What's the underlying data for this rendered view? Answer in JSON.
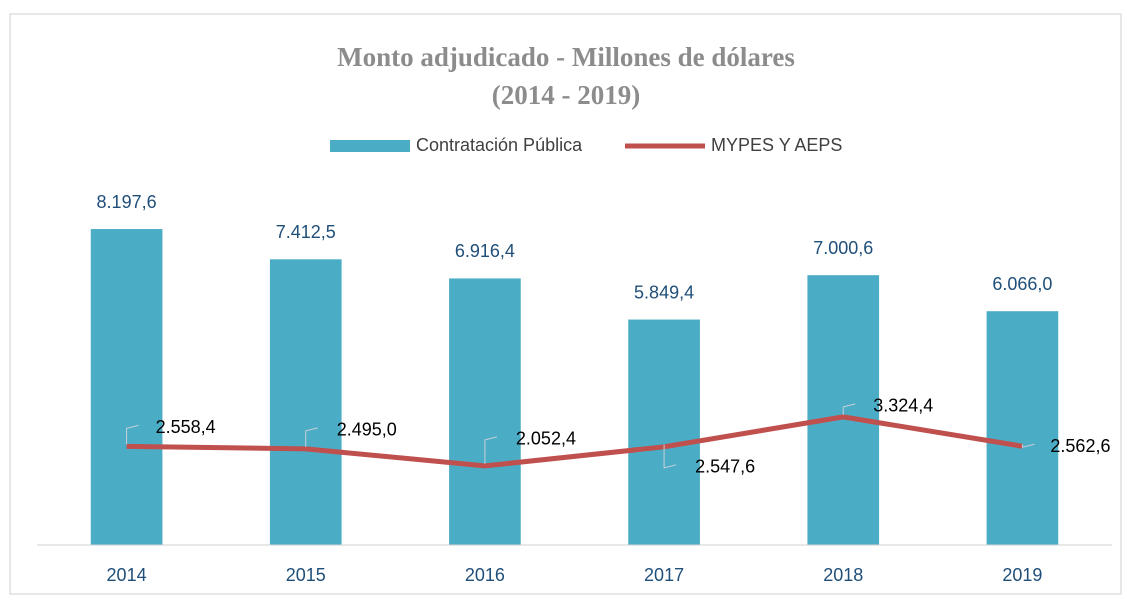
{
  "chart_data": {
    "type": "bar_line",
    "title": "Monto adjudicado - Millones de dólares",
    "subtitle": "(2014 - 2019)",
    "categories": [
      "2014",
      "2015",
      "2016",
      "2017",
      "2018",
      "2019"
    ],
    "series": [
      {
        "name": "Contratación Pública",
        "type": "bar",
        "color": "#4bacc6",
        "values": [
          8197.6,
          7412.5,
          6916.4,
          5849.4,
          7000.6,
          6066.0
        ],
        "value_labels": [
          "8.197,6",
          "7.412,5",
          "6.916,4",
          "5.849,4",
          "7.000,6",
          "6.066,0"
        ]
      },
      {
        "name": "MYPES Y AEPS",
        "type": "line",
        "color": "#c0504d",
        "values": [
          2558.4,
          2495.0,
          2052.4,
          2547.6,
          3324.4,
          2562.6
        ],
        "value_labels": [
          "2.558,4",
          "2.495,0",
          "2.052,4",
          "2.547,6",
          "3.324,4",
          "2.562,6"
        ]
      }
    ],
    "ylim": [
      0,
      9600
    ],
    "legend": "top"
  }
}
